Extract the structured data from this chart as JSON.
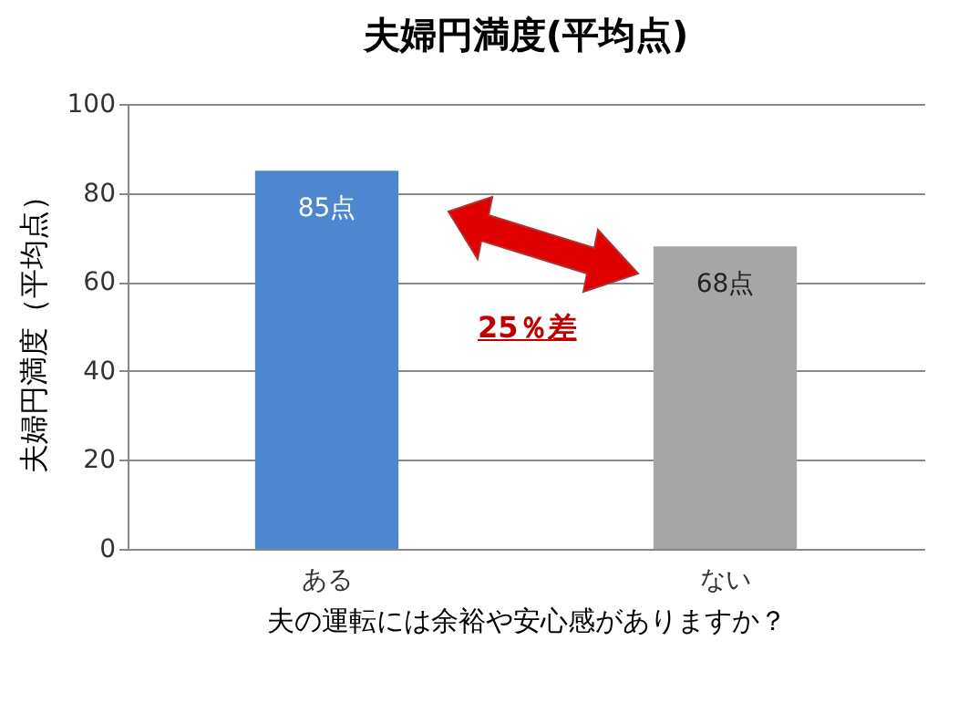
{
  "chart_data": {
    "type": "bar",
    "title": "夫婦円満度(平均点)",
    "xlabel": "夫の運転には余裕や安心感がありますか？",
    "ylabel": "夫婦円満度（平均点）",
    "categories": [
      "ある",
      "ない"
    ],
    "values": [
      85,
      68
    ],
    "colors": [
      "#4f86d0",
      "#a6a6a6"
    ],
    "value_labels": [
      "85点",
      "68点"
    ],
    "annotations": [
      "25％差"
    ],
    "ylim": [
      0,
      100
    ],
    "yticks": [
      0,
      20,
      40,
      60,
      80,
      100
    ],
    "grid": "y"
  }
}
